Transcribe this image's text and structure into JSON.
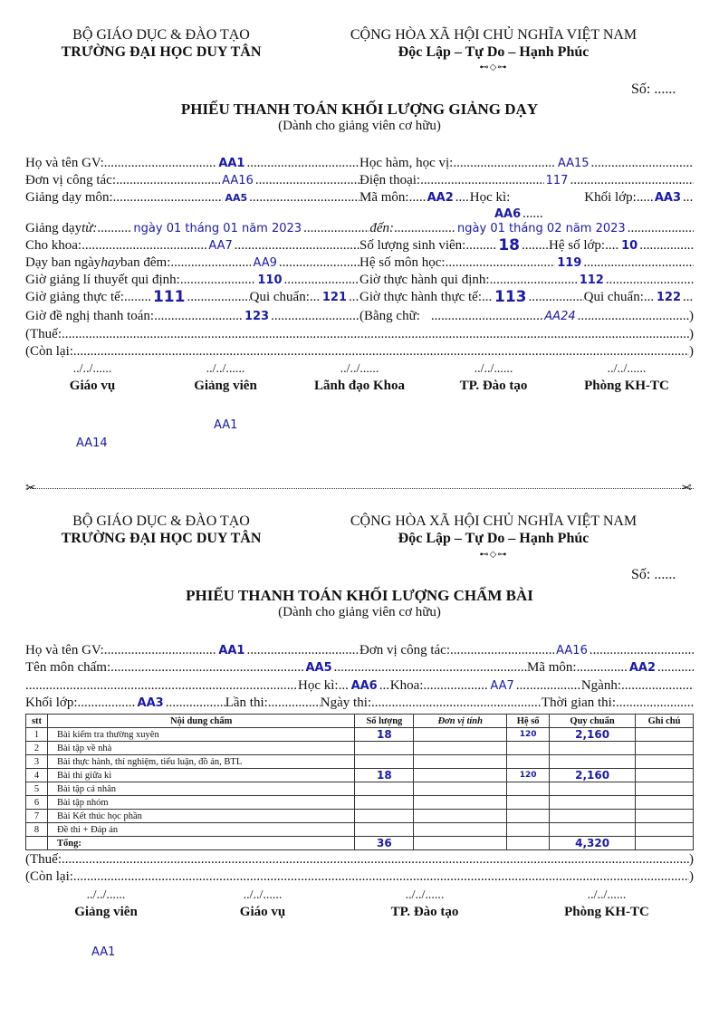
{
  "form1": {
    "org_left_1": "BỘ GIÁO DỤC & ĐÀO TẠO",
    "org_left_2": "TRƯỜNG ĐẠI HỌC DUY TÂN",
    "org_right_1": "CỘNG HÒA XÃ HỘI CHỦ NGHĨA VIỆT NAM",
    "org_right_2": "Độc Lập – Tự Do – Hạnh Phúc",
    "so": "Số: ......",
    "title": "PHIẾU THANH TOÁN KHỐI LƯỢNG GIẢNG DẠY",
    "subtitle": "(Dành cho giảng viên cơ hữu)",
    "l_name": "Họ và tên GV:",
    "name": "AA1",
    "l_hocham": "Học hàm, học vị:",
    "hocham": "AA15",
    "l_donvi": "Đơn vị công tác:",
    "donvi": "AA16",
    "l_phone": "Điện thoại:",
    "phone": "117",
    "l_mon": "Giảng dạy môn:",
    "mon": "AA5",
    "l_mamon": "Mã môn:",
    "mamon": "AA2",
    "l_hocki": "Học kì:",
    "hocki": "AA6",
    "l_khoilop": "Khối lớp:",
    "khoilop": "AA3",
    "l_tu_a": "Giảng dạy ",
    "l_tu_b": "từ:",
    "tu": "ngày 01 tháng 01 năm 2023",
    "l_den": "đến:",
    "den": "ngày 01 tháng 02 năm 2023",
    "l_khoa": "Cho khoa:",
    "khoa": "AA7",
    "l_slsv": "Số lượng sinh viên:",
    "slsv": "18",
    "l_hslop": "Hệ số lớp:",
    "hslop": "10",
    "l_day_a": "Dạy ban ngày ",
    "l_day_b": "hay",
    "l_day_c": " ban đêm:",
    "day": "AA9",
    "l_hsmon": "Hệ số môn học:",
    "hsmon": "119",
    "l_ltqd": "Giờ giảng lí thuyết qui định:",
    "ltqd": "110",
    "l_thqd": "Giờ thực hành qui định:",
    "thqd": "112",
    "l_gtt": "Giờ giảng thực tế:",
    "gtt": "111",
    "l_qc1": "Qui chuẩn:",
    "qc1": "121",
    "l_thtt": "Giờ thực hành thực tế:",
    "thtt": "113",
    "l_qc2": "Qui chuẩn:",
    "qc2": "122",
    "l_denghi": "Giờ đề nghị thanh toán:",
    "denghi": "123",
    "l_bangchu": "(Bằng chữ:",
    "bangchu": "AA24",
    "close": ")",
    "l_thue": "(Thuế:",
    "l_conlai": "(Còn lại:",
    "sig_date": "../../......",
    "signers": [
      "Giáo vụ",
      "Giảng viên",
      "Lãnh đạo Khoa",
      "TP. Đào tạo",
      "Phòng KH-TC"
    ],
    "sign_name": "AA1",
    "note": "AA14"
  },
  "form2": {
    "org_left_1": "BỘ GIÁO DỤC & ĐÀO TẠO",
    "org_left_2": "TRƯỜNG ĐẠI HỌC DUY TÂN",
    "org_right_1": "CỘNG HÒA XÃ HỘI CHỦ NGHĨA VIỆT NAM",
    "org_right_2": "Độc Lập – Tự Do – Hạnh Phúc",
    "so": "Số: ......",
    "title": "PHIẾU THANH TOÁN KHỐI LƯỢNG CHẤM BÀI",
    "subtitle": "(Dành cho giảng viên cơ hữu)",
    "l_name": "Họ và tên GV:",
    "name": "AA1",
    "l_donvi": "Đơn vị công tác:",
    "donvi": "AA16",
    "l_mon": "Tên môn chấm:",
    "mon": "AA5",
    "l_mamon": "Mã môn:",
    "mamon": "AA2",
    "l_hocki": "Học kì:",
    "hocki": "AA6",
    "l_khoa": "Khoa:",
    "khoa": "AA7",
    "l_nganh": "Ngành:",
    "l_khoilop": "Khối lớp:",
    "khoilop": "AA3",
    "l_lanthi": "Lần thi:",
    "l_ngaythi": "Ngày thi:",
    "l_tgthi": "Thời gian thi:",
    "table": {
      "headers": [
        "stt",
        "Nội dung chấm",
        "Số lượng",
        "Đơn vị tính",
        "Hệ số",
        "Quy chuẩn",
        "Ghi chú"
      ],
      "rows": [
        {
          "stt": "1",
          "content": "Bài kiểm tra thường xuyên",
          "sl": "18",
          "dvt": "",
          "hs": "120",
          "qc": "2,160",
          "gc": ""
        },
        {
          "stt": "2",
          "content": "Bài tập về nhà",
          "sl": "",
          "dvt": "",
          "hs": "",
          "qc": "",
          "gc": ""
        },
        {
          "stt": "3",
          "content": "Bài thực hành, thí nghiệm, tiểu luận, đồ án, BTL",
          "sl": "",
          "dvt": "",
          "hs": "",
          "qc": "",
          "gc": ""
        },
        {
          "stt": "4",
          "content": "Bài thi giữa kì",
          "sl": "18",
          "dvt": "",
          "hs": "120",
          "qc": "2,160",
          "gc": ""
        },
        {
          "stt": "5",
          "content": "Bài tập cá nhân",
          "sl": "",
          "dvt": "",
          "hs": "",
          "qc": "",
          "gc": ""
        },
        {
          "stt": "6",
          "content": "Bài tập nhóm",
          "sl": "",
          "dvt": "",
          "hs": "",
          "qc": "",
          "gc": ""
        },
        {
          "stt": "7",
          "content": "Bài Kết thúc học phần",
          "sl": "",
          "dvt": "",
          "hs": "",
          "qc": "",
          "gc": ""
        },
        {
          "stt": "8",
          "content": "Đề thi + Đáp án",
          "sl": "",
          "dvt": "",
          "hs": "",
          "qc": "",
          "gc": ""
        }
      ],
      "total": {
        "label": "Tổng:",
        "sl": "36",
        "qc": "4,320"
      }
    },
    "l_thue": "(Thuế:",
    "l_conlai": "(Còn lại:",
    "close": ")",
    "sig_date": "../../......",
    "signers": [
      "Giảng viên",
      "Giáo vụ",
      "TP. Đào tạo",
      "Phòng KH-TC"
    ],
    "sign_name": "AA1"
  },
  "icons": {
    "cut": "scissors-icon",
    "ornament": "decorative-ornament"
  }
}
